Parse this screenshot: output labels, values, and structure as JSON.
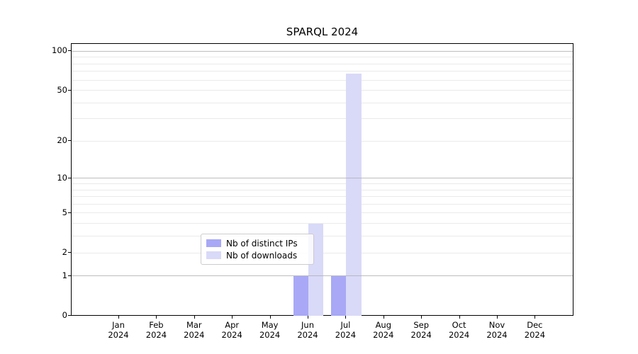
{
  "figure": {
    "title": "SPARQL 2024",
    "background": "#ffffff"
  },
  "legend": {
    "items": [
      {
        "label": "Nb of distinct IPs",
        "color": "#a8a8f6"
      },
      {
        "label": "Nb of downloads",
        "color": "#d9d9f8"
      }
    ]
  },
  "chart_data": {
    "type": "bar",
    "title": "SPARQL 2024",
    "categories": [
      "Jan 2024",
      "Feb 2024",
      "Mar 2024",
      "Apr 2024",
      "May 2024",
      "Jun 2024",
      "Jul 2024",
      "Aug 2024",
      "Sep 2024",
      "Oct 2024",
      "Nov 2024",
      "Dec 2024"
    ],
    "months": [
      "Jan",
      "Feb",
      "Mar",
      "Apr",
      "May",
      "Jun",
      "Jul",
      "Aug",
      "Sep",
      "Oct",
      "Nov",
      "Dec"
    ],
    "year": "2024",
    "series": [
      {
        "name": "Nb of distinct IPs",
        "color": "#a8a8f6",
        "values": [
          0,
          0,
          0,
          0,
          0,
          1,
          1,
          0,
          0,
          0,
          0,
          0
        ]
      },
      {
        "name": "Nb of downloads",
        "color": "#d9d9f8",
        "values": [
          0,
          0,
          0,
          0,
          0,
          4,
          67,
          0,
          0,
          0,
          0,
          0
        ]
      }
    ],
    "yscale": "log1p",
    "yticks": [
      0,
      1,
      2,
      5,
      10,
      20,
      50,
      100
    ],
    "ylim": [
      0,
      115
    ],
    "grid": "horizontal",
    "grid_major_at": [
      1,
      10,
      100
    ],
    "legend_position": "lower center",
    "colors": {
      "major_grid": "#b2b2b2",
      "minor_grid": "#eaeaea",
      "axis": "#000000"
    }
  }
}
